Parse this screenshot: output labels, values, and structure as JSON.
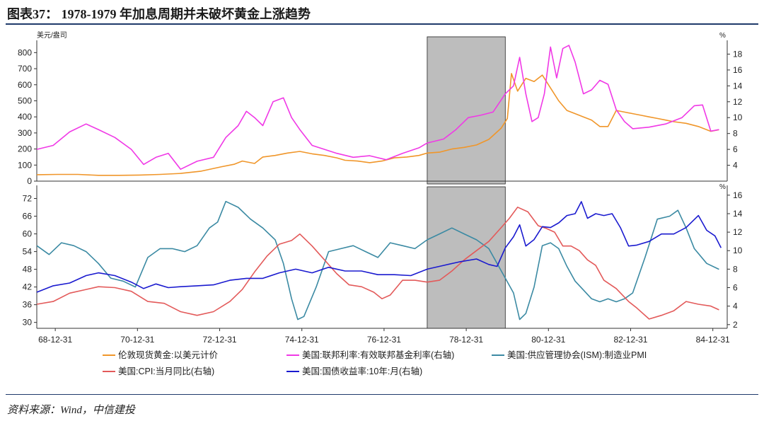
{
  "header": {
    "title": "图表37： 1978-1979 年加息周期并未破坏黄金上涨趋势"
  },
  "footer": {
    "source": "资料来源：Wind，中信建投"
  },
  "colors": {
    "gold": "#F0962A",
    "fedfunds": "#F039E6",
    "pmi": "#3B8AA3",
    "cpi": "#E35A5A",
    "tsy10y": "#1A1ACF",
    "shade": "#BDBDBD",
    "axis": "#333333"
  },
  "chart_data": [
    {
      "type": "line",
      "panel": "top",
      "left_unit": "美元/盎司",
      "right_unit": "%",
      "left_ticks": [
        "0",
        "100",
        "200",
        "300",
        "400",
        "500",
        "600",
        "700",
        "800"
      ],
      "right_ticks": [
        "4",
        "6",
        "8",
        "10",
        "12",
        "14",
        "16",
        "18"
      ],
      "ylim_left": [
        0,
        850
      ],
      "ylim_right": [
        2,
        19.2
      ],
      "xlim": [
        1968.5,
        1985.3
      ],
      "shaded_period": [
        1978.0,
        1979.9
      ],
      "series": [
        {
          "name": "伦敦现货黄金:以美元计价",
          "axis": "left",
          "color_key": "gold",
          "x": [
            1968.5,
            1969.0,
            1969.5,
            1970.0,
            1970.5,
            1971.0,
            1971.5,
            1972.0,
            1972.5,
            1973.0,
            1973.3,
            1973.5,
            1973.8,
            1974.0,
            1974.3,
            1974.6,
            1974.9,
            1975.2,
            1975.5,
            1975.8,
            1976.0,
            1976.3,
            1976.6,
            1976.9,
            1977.2,
            1977.5,
            1977.8,
            1978.0,
            1978.3,
            1978.6,
            1978.9,
            1979.2,
            1979.5,
            1979.8,
            1979.95,
            1980.05,
            1980.2,
            1980.4,
            1980.6,
            1980.8,
            1981.0,
            1981.2,
            1981.4,
            1981.6,
            1981.8,
            1982.0,
            1982.2,
            1982.4,
            1982.6,
            1982.8,
            1983.0,
            1983.2,
            1983.4,
            1983.6,
            1983.8,
            1984.0,
            1984.3,
            1984.6,
            1984.9,
            1985.1
          ],
          "y": [
            40,
            42,
            42,
            36,
            36,
            38,
            42,
            48,
            62,
            90,
            105,
            125,
            110,
            150,
            160,
            175,
            185,
            170,
            160,
            145,
            130,
            125,
            115,
            125,
            145,
            150,
            160,
            175,
            180,
            200,
            210,
            225,
            260,
            330,
            390,
            670,
            560,
            640,
            620,
            660,
            580,
            500,
            440,
            420,
            400,
            380,
            340,
            340,
            440,
            430,
            420,
            410,
            400,
            390,
            380,
            370,
            360,
            340,
            310,
            320
          ]
        },
        {
          "name": "美国:联邦利率:有效联邦基金利率(右轴)",
          "axis": "right",
          "color_key": "fedfunds",
          "x": [
            1968.5,
            1968.9,
            1969.3,
            1969.7,
            1970.0,
            1970.4,
            1970.8,
            1971.1,
            1971.4,
            1971.7,
            1972.0,
            1972.4,
            1972.8,
            1973.1,
            1973.4,
            1973.6,
            1973.8,
            1974.0,
            1974.25,
            1974.5,
            1974.7,
            1974.9,
            1975.2,
            1975.5,
            1975.8,
            1976.2,
            1976.6,
            1977.0,
            1977.4,
            1977.8,
            1978.0,
            1978.4,
            1978.7,
            1979.0,
            1979.3,
            1979.6,
            1979.9,
            1980.1,
            1980.25,
            1980.4,
            1980.55,
            1980.7,
            1980.85,
            1981.0,
            1981.15,
            1981.3,
            1981.45,
            1981.6,
            1981.8,
            1982.0,
            1982.2,
            1982.4,
            1982.6,
            1982.8,
            1983.0,
            1983.4,
            1983.8,
            1984.2,
            1984.5,
            1984.7,
            1984.9,
            1985.1
          ],
          "y": [
            6.0,
            6.5,
            8.2,
            9.2,
            8.5,
            7.5,
            6.0,
            4.1,
            5.0,
            5.5,
            3.5,
            4.5,
            5.0,
            7.5,
            9.0,
            10.8,
            10.0,
            9.0,
            12.0,
            12.5,
            10.0,
            8.5,
            6.5,
            6.0,
            5.5,
            5.0,
            5.2,
            4.7,
            5.5,
            6.2,
            6.8,
            7.3,
            8.5,
            10.0,
            10.3,
            10.7,
            13.0,
            14.0,
            17.6,
            13.0,
            9.5,
            10.0,
            13.0,
            18.9,
            15.0,
            18.7,
            19.1,
            17.0,
            13.0,
            13.5,
            14.7,
            14.2,
            11.0,
            9.5,
            8.6,
            8.8,
            9.2,
            10.0,
            11.5,
            11.6,
            8.3,
            8.5
          ]
        },
        {
          "name": "美国:CPI:当月同比(右轴)",
          "axis": "right",
          "color_key": "cpi",
          "x": [],
          "y": []
        }
      ]
    },
    {
      "type": "line",
      "panel": "bottom",
      "left_unit": "",
      "right_unit": "%",
      "left_ticks": [
        "30",
        "36",
        "42",
        "48",
        "54",
        "60",
        "66",
        "72"
      ],
      "right_ticks": [
        "2",
        "4",
        "6",
        "8",
        "10",
        "12",
        "14",
        "16"
      ],
      "ylim_left": [
        28,
        75
      ],
      "ylim_right": [
        1.6,
        16.6
      ],
      "xlim": [
        1968.5,
        1985.3
      ],
      "x_tick_labels": [
        "68-12-31",
        "70-12-31",
        "72-12-31",
        "74-12-31",
        "76-12-31",
        "78-12-31",
        "80-12-31",
        "82-12-31",
        "84-12-31"
      ],
      "x_tick_values": [
        1968.95,
        1970.95,
        1972.95,
        1974.95,
        1976.95,
        1978.95,
        1980.95,
        1982.95,
        1984.95
      ],
      "shaded_period": [
        1978.0,
        1979.9
      ],
      "series": [
        {
          "name": "美国:供应管理协会(ISM):制造业PMI",
          "axis": "left",
          "color_key": "pmi",
          "x": [
            1968.5,
            1968.8,
            1969.1,
            1969.4,
            1969.7,
            1970.0,
            1970.3,
            1970.6,
            1970.9,
            1971.2,
            1971.5,
            1971.8,
            1972.1,
            1972.4,
            1972.7,
            1972.9,
            1973.1,
            1973.4,
            1973.7,
            1974.0,
            1974.3,
            1974.5,
            1974.7,
            1974.85,
            1975.0,
            1975.3,
            1975.6,
            1975.9,
            1976.2,
            1976.5,
            1976.8,
            1977.1,
            1977.4,
            1977.7,
            1978.0,
            1978.3,
            1978.6,
            1978.9,
            1979.2,
            1979.5,
            1979.7,
            1979.9,
            1980.1,
            1980.25,
            1980.4,
            1980.6,
            1980.8,
            1981.0,
            1981.2,
            1981.4,
            1981.6,
            1981.8,
            1982.0,
            1982.2,
            1982.4,
            1982.6,
            1982.8,
            1983.0,
            1983.3,
            1983.6,
            1983.9,
            1984.1,
            1984.3,
            1984.5,
            1984.8,
            1985.1
          ],
          "y": [
            56,
            53,
            57,
            56,
            54,
            50,
            45,
            44,
            42,
            52,
            55,
            55,
            54,
            56,
            62,
            64,
            71,
            69,
            65,
            62,
            58,
            50,
            38,
            31,
            32,
            42,
            54,
            55,
            56,
            54,
            52,
            57,
            56,
            55,
            58,
            60,
            62,
            60,
            58,
            55,
            50,
            45,
            40,
            31,
            33,
            42,
            56,
            57,
            55,
            49,
            44,
            41,
            38,
            37,
            38,
            37,
            38,
            40,
            52,
            65,
            66,
            68,
            62,
            55,
            50,
            48
          ]
        },
        {
          "name": "美国:CPI:当月同比(右轴)",
          "axis": "right",
          "color_key": "cpi",
          "x": [
            1968.5,
            1968.9,
            1969.3,
            1969.7,
            1970.0,
            1970.4,
            1970.8,
            1971.2,
            1971.6,
            1972.0,
            1972.4,
            1972.8,
            1973.2,
            1973.5,
            1973.8,
            1974.1,
            1974.4,
            1974.7,
            1974.9,
            1975.2,
            1975.5,
            1975.8,
            1976.1,
            1976.4,
            1976.7,
            1976.9,
            1977.1,
            1977.4,
            1977.7,
            1978.0,
            1978.3,
            1978.6,
            1978.9,
            1979.2,
            1979.5,
            1979.8,
            1980.0,
            1980.2,
            1980.45,
            1980.7,
            1980.9,
            1981.1,
            1981.3,
            1981.5,
            1981.7,
            1981.9,
            1982.1,
            1982.3,
            1982.6,
            1982.9,
            1983.1,
            1983.4,
            1983.7,
            1984.0,
            1984.3,
            1984.6,
            1984.9,
            1985.1
          ],
          "y": [
            4.2,
            4.5,
            5.4,
            5.8,
            6.1,
            6.0,
            5.6,
            4.5,
            4.3,
            3.4,
            3.0,
            3.4,
            4.5,
            5.8,
            7.7,
            9.4,
            10.7,
            11.1,
            11.8,
            10.5,
            9.0,
            7.5,
            6.3,
            6.1,
            5.5,
            4.8,
            5.2,
            6.8,
            6.8,
            6.6,
            6.8,
            7.8,
            9.0,
            10.0,
            11.0,
            12.5,
            13.5,
            14.7,
            14.2,
            12.7,
            12.4,
            12.0,
            10.5,
            10.5,
            10.0,
            9.0,
            8.4,
            6.8,
            5.9,
            4.5,
            3.8,
            2.6,
            3.0,
            3.5,
            4.5,
            4.2,
            4.0,
            3.6
          ]
        },
        {
          "name": "美国:国债收益率:10年:月(右轴)",
          "axis": "right",
          "color_key": "tsy10y",
          "x": [
            1968.5,
            1968.9,
            1969.3,
            1969.7,
            1970.0,
            1970.4,
            1970.8,
            1971.1,
            1971.4,
            1971.7,
            1972.0,
            1972.4,
            1972.8,
            1973.2,
            1973.6,
            1974.0,
            1974.4,
            1974.8,
            1975.2,
            1975.6,
            1976.0,
            1976.4,
            1976.8,
            1977.2,
            1977.6,
            1978.0,
            1978.4,
            1978.8,
            1979.2,
            1979.5,
            1979.7,
            1979.9,
            1980.1,
            1980.25,
            1980.4,
            1980.6,
            1980.8,
            1981.0,
            1981.2,
            1981.4,
            1981.6,
            1981.75,
            1981.9,
            1982.1,
            1982.3,
            1982.5,
            1982.7,
            1982.9,
            1983.1,
            1983.4,
            1983.7,
            1984.0,
            1984.3,
            1984.6,
            1984.8,
            1985.0,
            1985.15
          ],
          "y": [
            5.5,
            6.2,
            6.5,
            7.3,
            7.6,
            7.3,
            6.6,
            5.9,
            6.4,
            6.0,
            6.1,
            6.2,
            6.3,
            6.8,
            7.0,
            7.0,
            7.6,
            8.0,
            7.6,
            8.2,
            7.8,
            7.8,
            7.4,
            7.4,
            7.3,
            8.0,
            8.4,
            8.8,
            9.1,
            8.5,
            8.3,
            10.3,
            11.5,
            12.8,
            10.5,
            11.2,
            12.6,
            12.5,
            13.0,
            13.8,
            14.0,
            15.3,
            13.5,
            14.0,
            13.8,
            14.0,
            12.5,
            10.5,
            10.6,
            11.0,
            11.8,
            11.8,
            12.5,
            13.8,
            12.2,
            11.6,
            10.3
          ]
        }
      ]
    }
  ],
  "legend": [
    {
      "label": "伦敦现货黄金:以美元计价",
      "color_key": "gold"
    },
    {
      "label": "美国:联邦利率:有效联邦基金利率(右轴)",
      "color_key": "fedfunds"
    },
    {
      "label": "美国:供应管理协会(ISM):制造业PMI",
      "color_key": "pmi"
    },
    {
      "label": "美国:CPI:当月同比(右轴)",
      "color_key": "cpi"
    },
    {
      "label": "美国:国债收益率:10年:月(右轴)",
      "color_key": "tsy10y"
    }
  ]
}
